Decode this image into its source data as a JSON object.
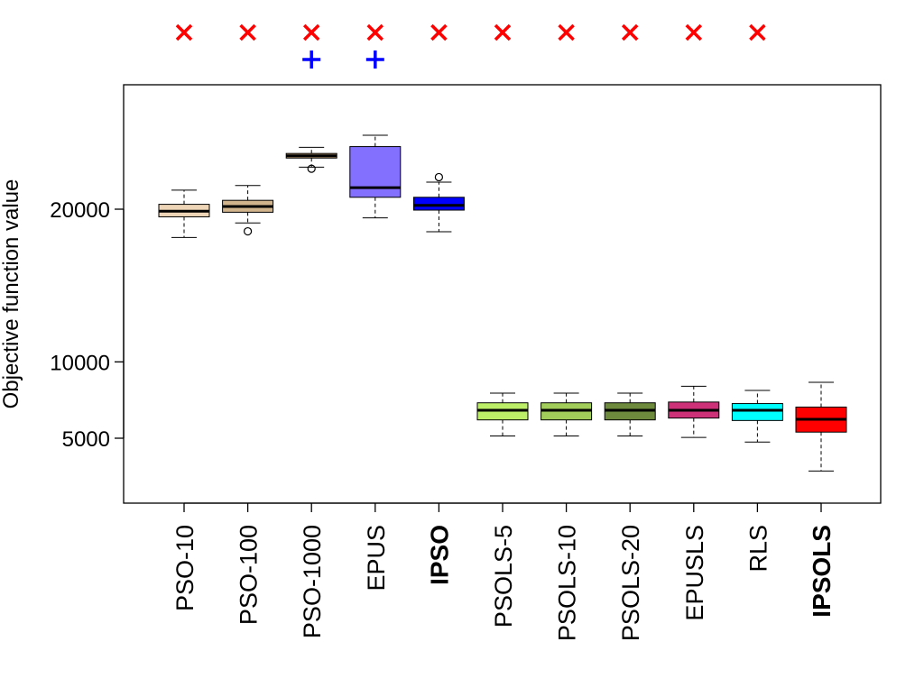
{
  "chart_data": {
    "type": "box",
    "ylabel": "Objective function value",
    "xlabel": "",
    "ylim": [
      2900,
      25600
    ],
    "yticks": [
      5000,
      10000,
      20000
    ],
    "ytick_labels": [
      "5000",
      "10000",
      "20000"
    ],
    "categories": [
      "PSO-10",
      "PSO-100",
      "PSO-1000",
      "EPUS",
      "IPSO",
      "PSOLS-5",
      "PSOLS-10",
      "PSOLS-20",
      "EPUSLS",
      "RLS",
      "IPSOLS"
    ],
    "bold_categories": [
      "IPSO",
      "IPSOLS"
    ],
    "boxes": [
      {
        "name": "PSO-10",
        "whisker_low": 18150,
        "q1": 19500,
        "median": 19870,
        "q3": 20320,
        "whisker_high": 21250,
        "outliers": [],
        "color": "#EED5B7"
      },
      {
        "name": "PSO-100",
        "whisker_low": 19100,
        "q1": 19800,
        "median": 20180,
        "q3": 20580,
        "whisker_high": 21550,
        "outliers": [
          18550
        ],
        "color": "#D2B48C"
      },
      {
        "name": "PSO-1000",
        "whisker_low": 22750,
        "q1": 23350,
        "median": 23500,
        "q3": 23650,
        "whisker_high": 24050,
        "outliers": [
          22650
        ],
        "color": "#CDAA7D"
      },
      {
        "name": "EPUS",
        "whisker_low": 19430,
        "q1": 20780,
        "median": 21410,
        "q3": 24100,
        "whisker_high": 24840,
        "outliers": [],
        "color": "#8470FF"
      },
      {
        "name": "IPSO",
        "whisker_low": 18520,
        "q1": 19940,
        "median": 20250,
        "q3": 20780,
        "whisker_high": 21770,
        "outliers": [
          22100
        ],
        "color": "#0000FF"
      },
      {
        "name": "PSOLS-5",
        "whisker_low": 5150,
        "q1": 6200,
        "median": 6830,
        "q3": 7320,
        "whisker_high": 7950,
        "outliers": [],
        "color": "#BCEE68"
      },
      {
        "name": "PSOLS-10",
        "whisker_low": 5150,
        "q1": 6200,
        "median": 6830,
        "q3": 7320,
        "whisker_high": 7950,
        "outliers": [],
        "color": "#A2CD5A"
      },
      {
        "name": "PSOLS-20",
        "whisker_low": 5150,
        "q1": 6200,
        "median": 6830,
        "q3": 7320,
        "whisker_high": 7950,
        "outliers": [],
        "color": "#6E8B3D"
      },
      {
        "name": "EPUSLS",
        "whisker_low": 5050,
        "q1": 6320,
        "median": 6830,
        "q3": 7370,
        "whisker_high": 8400,
        "outliers": [],
        "color": "#CD3278"
      },
      {
        "name": "RLS",
        "whisker_low": 4750,
        "q1": 6160,
        "median": 6830,
        "q3": 7270,
        "whisker_high": 8130,
        "outliers": [],
        "color": "#00FFFF"
      },
      {
        "name": "IPSOLS",
        "whisker_low": 2850,
        "q1": 5400,
        "median": 6240,
        "q3": 7040,
        "whisker_high": 8660,
        "outliers": [],
        "color": "#FF0000"
      }
    ],
    "markers": {
      "x_marks": [
        "PSO-10",
        "PSO-100",
        "PSO-1000",
        "EPUS",
        "IPSO",
        "PSOLS-5",
        "PSOLS-10",
        "PSOLS-20",
        "EPUSLS",
        "RLS"
      ],
      "x_mark_color": "#FF0000",
      "plus_marks": [
        "PSO-1000",
        "EPUS"
      ],
      "plus_mark_color": "#0000FF"
    },
    "grid": false,
    "legend": "none"
  }
}
